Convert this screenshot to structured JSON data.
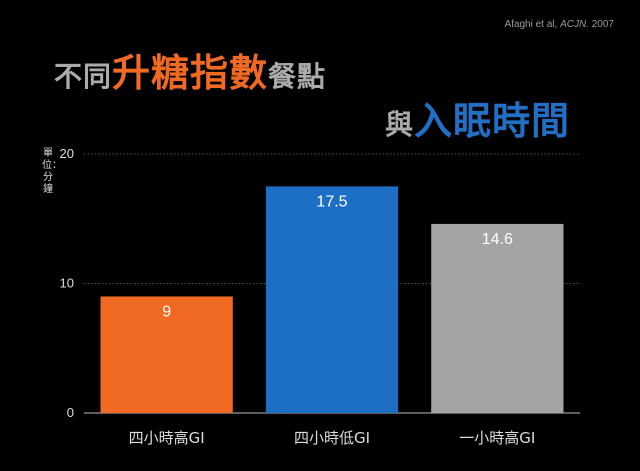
{
  "citation": {
    "authors": "Afaghi et al, ",
    "journal": "ACJN.",
    "year": " 2007"
  },
  "title": {
    "line1_part1": "不同",
    "line1_part2": "升糖指數",
    "line1_part3": "餐點",
    "line2_part1": "與",
    "line2_part2": "入眠時間"
  },
  "colors": {
    "orange": "#f06a24",
    "blue": "#1d6ec5",
    "grey": "#a3a5a4",
    "grid": "#888888"
  },
  "chart_data": {
    "type": "bar",
    "ylabel": "單位：分鐘",
    "xlabel": "",
    "ylim": [
      0,
      20
    ],
    "yticks": [
      0,
      10,
      20
    ],
    "ytick_labels": [
      "0",
      "10",
      "20"
    ],
    "grid": "horizontal dotted",
    "categories": [
      "四小時高GI",
      "四小時低GI",
      "一小時高GI"
    ],
    "values": [
      9,
      17.5,
      14.6
    ],
    "value_labels": [
      "9",
      "17.5",
      "14.6"
    ],
    "bar_colors": [
      "#f06a24",
      "#1d6ec5",
      "#a3a5a4"
    ]
  }
}
